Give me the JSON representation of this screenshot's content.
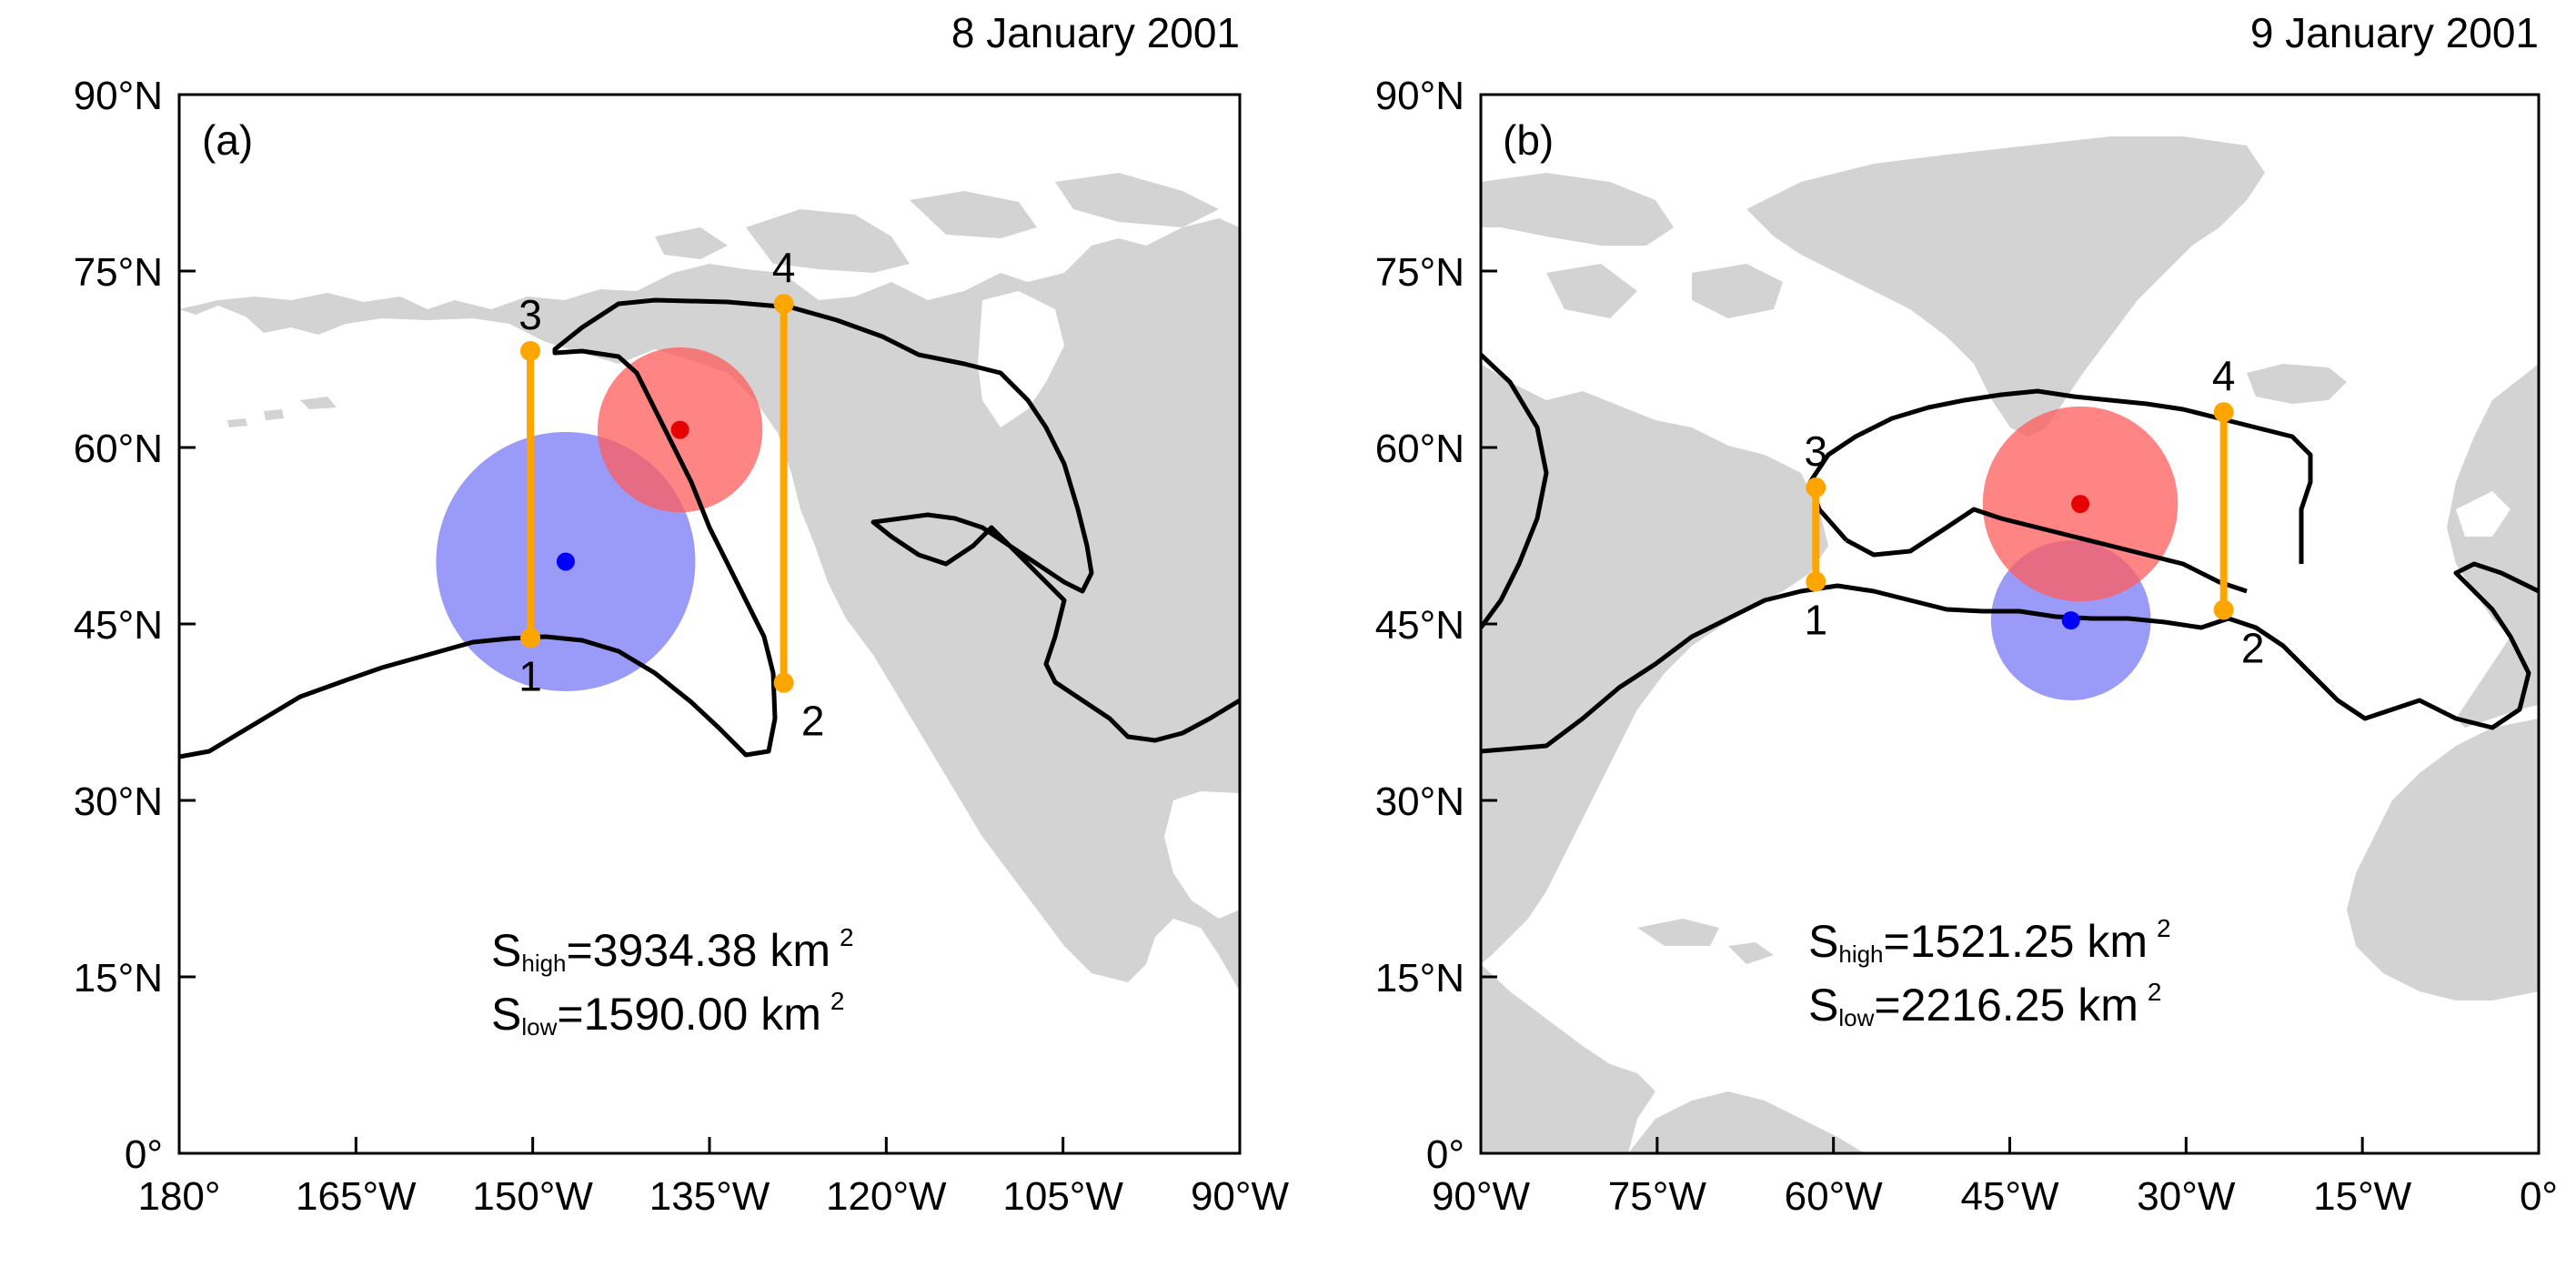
{
  "panels": [
    {
      "label": "(a)",
      "date": "8 January 2001",
      "lon_range": [
        -180,
        -90
      ],
      "lat_range": [
        0,
        90
      ],
      "x_ticks": [
        "180°",
        "165°W",
        "150°W",
        "135°W",
        "120°W",
        "105°W",
        "90°W"
      ],
      "y_ticks": [
        "0°",
        "15°N",
        "30°N",
        "45°N",
        "60°N",
        "75°N",
        "90°N"
      ],
      "high": {
        "lon": -137.5,
        "lat": 61.5,
        "radius_deg": 7,
        "color": "#ff5c5c",
        "dot_color": "#e60000"
      },
      "low": {
        "lon": -147.2,
        "lat": 50.3,
        "radius_deg": 11,
        "color": "#6f6ff5",
        "dot_color": "#0000ff"
      },
      "segments": [
        {
          "from": {
            "lon": -150.2,
            "lat": 68.2,
            "label": "3"
          },
          "to": {
            "lon": -150.2,
            "lat": 43.8,
            "label": "1"
          }
        },
        {
          "from": {
            "lon": -128.7,
            "lat": 72.2,
            "label": "4"
          },
          "to": {
            "lon": -128.7,
            "lat": 40.0,
            "label": "2"
          }
        }
      ],
      "area": {
        "s_high_value": "=3934.38 km",
        "s_low_value": "=1590.00 km",
        "sub_high": "high",
        "sub_low": "low",
        "s": "S",
        "sup": "2"
      }
    },
    {
      "label": "(b)",
      "date": "9 January 2001",
      "lon_range": [
        -90,
        0
      ],
      "lat_range": [
        0,
        90
      ],
      "x_ticks": [
        "90°W",
        "75°W",
        "60°W",
        "45°W",
        "30°W",
        "15°W",
        "0°"
      ],
      "y_ticks": [
        "0°",
        "15°N",
        "30°N",
        "45°N",
        "60°N",
        "75°N",
        "90°N"
      ],
      "high": {
        "lon": -39.0,
        "lat": 55.2,
        "radius_deg": 8.3,
        "color": "#ff5c5c",
        "dot_color": "#e60000"
      },
      "low": {
        "lon": -39.8,
        "lat": 45.3,
        "radius_deg": 6.8,
        "color": "#6f6ff5",
        "dot_color": "#0000ff"
      },
      "segments": [
        {
          "from": {
            "lon": -61.5,
            "lat": 56.6,
            "label": "3"
          },
          "to": {
            "lon": -61.5,
            "lat": 48.6,
            "label": "1"
          }
        },
        {
          "from": {
            "lon": -26.8,
            "lat": 63.0,
            "label": "4"
          },
          "to": {
            "lon": -26.8,
            "lat": 46.2,
            "label": "2"
          }
        }
      ],
      "area": {
        "s_high_value": "=1521.25 km",
        "s_low_value": "=2216.25 km",
        "sub_high": "high",
        "sub_low": "low",
        "s": "S",
        "sup": "2"
      }
    }
  ],
  "colors": {
    "land": "#d3d3d3",
    "contour": "#000000",
    "segment": "#ffa500"
  }
}
